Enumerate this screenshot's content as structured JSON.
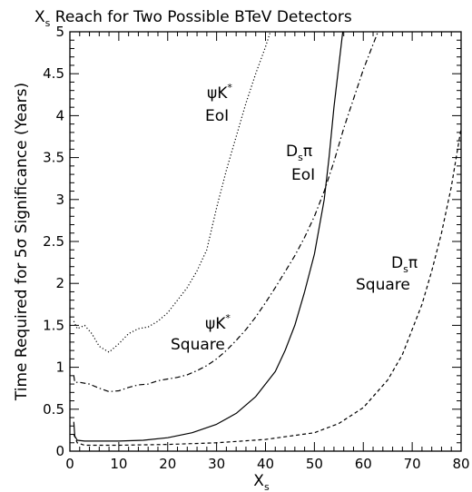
{
  "chart_data": {
    "type": "line",
    "title": {
      "main": "X",
      "sub": "s",
      "rest": " Reach for Two Possible BTeV Detectors"
    },
    "xlabel": {
      "main": "X",
      "sub": "s"
    },
    "ylabel": "Time Required for 5σ Significance (Years)",
    "xlim": [
      0,
      80
    ],
    "ylim": [
      0,
      5
    ],
    "xticks": [
      0,
      10,
      20,
      30,
      40,
      50,
      60,
      70,
      80
    ],
    "yticks": [
      0,
      0.5,
      1,
      1.5,
      2,
      2.5,
      3,
      3.5,
      4,
      4.5,
      5
    ],
    "ytick_labels": [
      "0",
      "0.5",
      "1",
      "1.5",
      "2",
      "2.5",
      "3",
      "3.5",
      "4",
      "4.5",
      "5"
    ],
    "grid": false,
    "series": [
      {
        "style": "dotted",
        "points": [
          [
            0.8,
            1.55
          ],
          [
            1.5,
            1.46
          ],
          [
            3,
            1.5
          ],
          [
            4.5,
            1.4
          ],
          [
            6,
            1.25
          ],
          [
            8,
            1.18
          ],
          [
            10,
            1.28
          ],
          [
            12,
            1.4
          ],
          [
            14,
            1.46
          ],
          [
            16,
            1.48
          ],
          [
            18,
            1.55
          ],
          [
            20,
            1.65
          ],
          [
            22,
            1.8
          ],
          [
            24,
            1.95
          ],
          [
            26,
            2.15
          ],
          [
            28,
            2.4
          ],
          [
            30,
            2.9
          ],
          [
            32,
            3.35
          ],
          [
            34,
            3.75
          ],
          [
            36,
            4.15
          ],
          [
            38,
            4.5
          ],
          [
            40,
            4.82
          ],
          [
            41,
            5.0
          ]
        ]
      },
      {
        "style": "dashdot",
        "points": [
          [
            0.8,
            0.9
          ],
          [
            1,
            0.82
          ],
          [
            2,
            0.82
          ],
          [
            4,
            0.8
          ],
          [
            6,
            0.75
          ],
          [
            8,
            0.71
          ],
          [
            10,
            0.72
          ],
          [
            12,
            0.76
          ],
          [
            14,
            0.79
          ],
          [
            16,
            0.8
          ],
          [
            18,
            0.84
          ],
          [
            20,
            0.86
          ],
          [
            22,
            0.88
          ],
          [
            24,
            0.91
          ],
          [
            26,
            0.96
          ],
          [
            28,
            1.02
          ],
          [
            30,
            1.1
          ],
          [
            32,
            1.2
          ],
          [
            34,
            1.32
          ],
          [
            36,
            1.45
          ],
          [
            38,
            1.6
          ],
          [
            40,
            1.77
          ],
          [
            42,
            1.95
          ],
          [
            44,
            2.14
          ],
          [
            46,
            2.33
          ],
          [
            48,
            2.55
          ],
          [
            50,
            2.8
          ],
          [
            52,
            3.1
          ],
          [
            54,
            3.45
          ],
          [
            56,
            3.85
          ],
          [
            58,
            4.2
          ],
          [
            60,
            4.55
          ],
          [
            62,
            4.85
          ],
          [
            63,
            5.0
          ]
        ]
      },
      {
        "style": "solid",
        "points": [
          [
            0.8,
            0.35
          ],
          [
            1,
            0.18
          ],
          [
            1.5,
            0.13
          ],
          [
            3,
            0.12
          ],
          [
            6,
            0.12
          ],
          [
            10,
            0.12
          ],
          [
            15,
            0.13
          ],
          [
            20,
            0.16
          ],
          [
            25,
            0.22
          ],
          [
            30,
            0.32
          ],
          [
            34,
            0.45
          ],
          [
            38,
            0.65
          ],
          [
            42,
            0.95
          ],
          [
            44,
            1.2
          ],
          [
            46,
            1.5
          ],
          [
            48,
            1.9
          ],
          [
            50,
            2.35
          ],
          [
            52,
            3.0
          ],
          [
            53,
            3.5
          ],
          [
            54,
            4.1
          ],
          [
            55,
            4.6
          ],
          [
            55.8,
            5.0
          ]
        ]
      },
      {
        "style": "dashed",
        "points": [
          [
            0.8,
            0.2
          ],
          [
            1.5,
            0.1
          ],
          [
            3,
            0.07
          ],
          [
            10,
            0.07
          ],
          [
            20,
            0.08
          ],
          [
            30,
            0.1
          ],
          [
            40,
            0.14
          ],
          [
            50,
            0.22
          ],
          [
            55,
            0.33
          ],
          [
            60,
            0.52
          ],
          [
            65,
            0.85
          ],
          [
            68,
            1.15
          ],
          [
            70,
            1.45
          ],
          [
            72,
            1.75
          ],
          [
            74,
            2.15
          ],
          [
            76,
            2.6
          ],
          [
            78,
            3.15
          ],
          [
            80,
            3.85
          ]
        ]
      }
    ],
    "annotations": [
      {
        "main": "ψK",
        "sup": "*",
        "line2": "EoI"
      },
      {
        "main": "D",
        "sub": "s",
        "rest": "π",
        "line2": "EoI"
      },
      {
        "main": "ψK",
        "sup": "*",
        "line2": "Square"
      },
      {
        "main": "D",
        "sub": "s",
        "rest": "π",
        "line2": "Square"
      }
    ]
  }
}
